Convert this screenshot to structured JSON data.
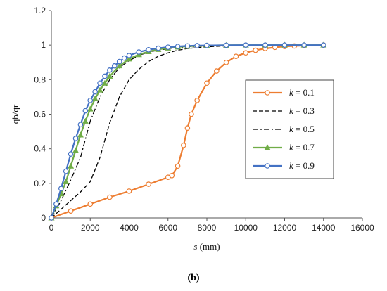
{
  "caption": "(b)",
  "chart_data": {
    "type": "line",
    "title": "",
    "xlabel": "s (mm)",
    "ylabel": "qb/qr",
    "xlim": [
      0,
      16000
    ],
    "ylim": [
      0,
      1.2
    ],
    "xticks": [
      0,
      2000,
      4000,
      6000,
      8000,
      10000,
      12000,
      14000,
      16000
    ],
    "yticks": [
      0,
      0.2,
      0.4,
      0.6,
      0.8,
      1,
      1.2
    ],
    "grid": false,
    "legend_position": "right",
    "series": [
      {
        "name": "k = 0.1",
        "color": "#ED7D31",
        "marker": "circle-open",
        "dash": "solid",
        "x": [
          0,
          1000,
          2000,
          3000,
          4000,
          5000,
          6000,
          6200,
          6500,
          6800,
          7000,
          7200,
          7500,
          8000,
          8500,
          9000,
          9500,
          10000,
          10500,
          11000,
          11500,
          12000,
          12500,
          13000,
          14000
        ],
        "y": [
          0,
          0.04,
          0.08,
          0.12,
          0.155,
          0.195,
          0.235,
          0.245,
          0.3,
          0.42,
          0.52,
          0.6,
          0.68,
          0.78,
          0.85,
          0.9,
          0.935,
          0.955,
          0.97,
          0.98,
          0.987,
          0.992,
          0.995,
          0.997,
          1.0
        ]
      },
      {
        "name": "k = 0.3",
        "color": "#000000",
        "marker": "none",
        "dash": "dashed",
        "x": [
          0,
          500,
          1000,
          1500,
          2000,
          2500,
          3000,
          3500,
          4000,
          4500,
          5000,
          5500,
          6000,
          6500,
          7000,
          8000,
          9000,
          10000,
          14000
        ],
        "y": [
          0,
          0.05,
          0.1,
          0.15,
          0.21,
          0.35,
          0.55,
          0.7,
          0.8,
          0.86,
          0.905,
          0.935,
          0.955,
          0.97,
          0.98,
          0.99,
          0.995,
          0.998,
          1.0
        ]
      },
      {
        "name": "k = 0.5",
        "color": "#000000",
        "marker": "none",
        "dash": "dashdot",
        "x": [
          0,
          500,
          1000,
          1500,
          2000,
          2500,
          3000,
          3500,
          4000,
          4500,
          5000,
          6000,
          7000,
          8000,
          10000,
          14000
        ],
        "y": [
          0,
          0.1,
          0.22,
          0.35,
          0.56,
          0.7,
          0.8,
          0.87,
          0.91,
          0.94,
          0.96,
          0.98,
          0.99,
          0.995,
          0.999,
          1.0
        ]
      },
      {
        "name": "k = 0.7",
        "color": "#70AD47",
        "marker": "triangle",
        "dash": "solid",
        "x": [
          0,
          250,
          500,
          750,
          1000,
          1250,
          1500,
          1750,
          2000,
          2250,
          2500,
          2750,
          3000,
          3500,
          4000,
          4500,
          5000,
          5500,
          6000,
          6500,
          7000,
          8000,
          9000,
          10000,
          11000,
          12000,
          13000,
          14000
        ],
        "y": [
          0,
          0.07,
          0.14,
          0.21,
          0.3,
          0.39,
          0.48,
          0.56,
          0.63,
          0.69,
          0.74,
          0.78,
          0.82,
          0.88,
          0.92,
          0.945,
          0.962,
          0.975,
          0.983,
          0.989,
          0.993,
          0.997,
          0.999,
          1.0,
          1.0,
          1.0,
          1.0,
          1.0
        ]
      },
      {
        "name": "k = 0.9",
        "color": "#4472C4",
        "marker": "circle-open",
        "dash": "solid",
        "x": [
          0,
          250,
          500,
          750,
          1000,
          1250,
          1500,
          1750,
          2000,
          2250,
          2500,
          2750,
          3000,
          3250,
          3500,
          3750,
          4000,
          4500,
          5000,
          5500,
          6000,
          6500,
          7000,
          7500,
          8000,
          9000,
          10000,
          11000,
          12000,
          13000,
          14000
        ],
        "y": [
          0,
          0.08,
          0.17,
          0.27,
          0.37,
          0.46,
          0.54,
          0.62,
          0.68,
          0.73,
          0.78,
          0.82,
          0.855,
          0.88,
          0.905,
          0.925,
          0.94,
          0.96,
          0.973,
          0.982,
          0.988,
          0.992,
          0.995,
          0.997,
          0.998,
          0.999,
          1.0,
          1.0,
          1.0,
          1.0,
          1.0
        ]
      }
    ]
  }
}
